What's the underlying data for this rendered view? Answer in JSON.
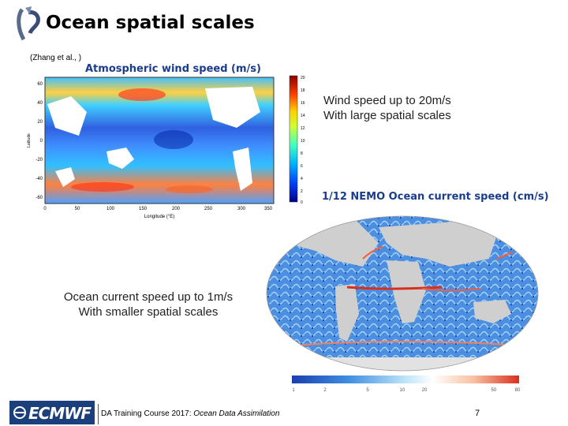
{
  "title": "Ocean spatial scales",
  "citation": "(Zhang et al., )",
  "wind_map": {
    "label": "Atmospheric wind speed  (m/s)",
    "y_ticks": [
      "60",
      "40",
      "20",
      "0",
      "-20",
      "-40",
      "-60"
    ],
    "x_ticks": [
      "0",
      "50",
      "100",
      "150",
      "200",
      "250",
      "300",
      "350"
    ],
    "ylabel": "Latitude",
    "xlabel": "Longitude (°E)",
    "colorbar_ticks": [
      "20",
      "18",
      "16",
      "14",
      "12",
      "10",
      "8",
      "6",
      "4",
      "2",
      "0"
    ]
  },
  "wind_note": {
    "line1": "Wind speed up to 20m/s",
    "line2": "With large spatial scales"
  },
  "nemo_map": {
    "label": "1/12 NEMO Ocean current speed (cm/s)",
    "colorbar_ticks": [
      "1",
      "2",
      "5",
      "10",
      "20",
      "50",
      "80"
    ]
  },
  "ocean_note": {
    "line1": "Ocean current speed up to 1m/s",
    "line2": "With smaller spatial scales"
  },
  "footer": {
    "logo": "ECMWF",
    "course": "DA Training Course 2017: ",
    "course_italic": "Ocean Data Assimilation",
    "page": "7"
  }
}
